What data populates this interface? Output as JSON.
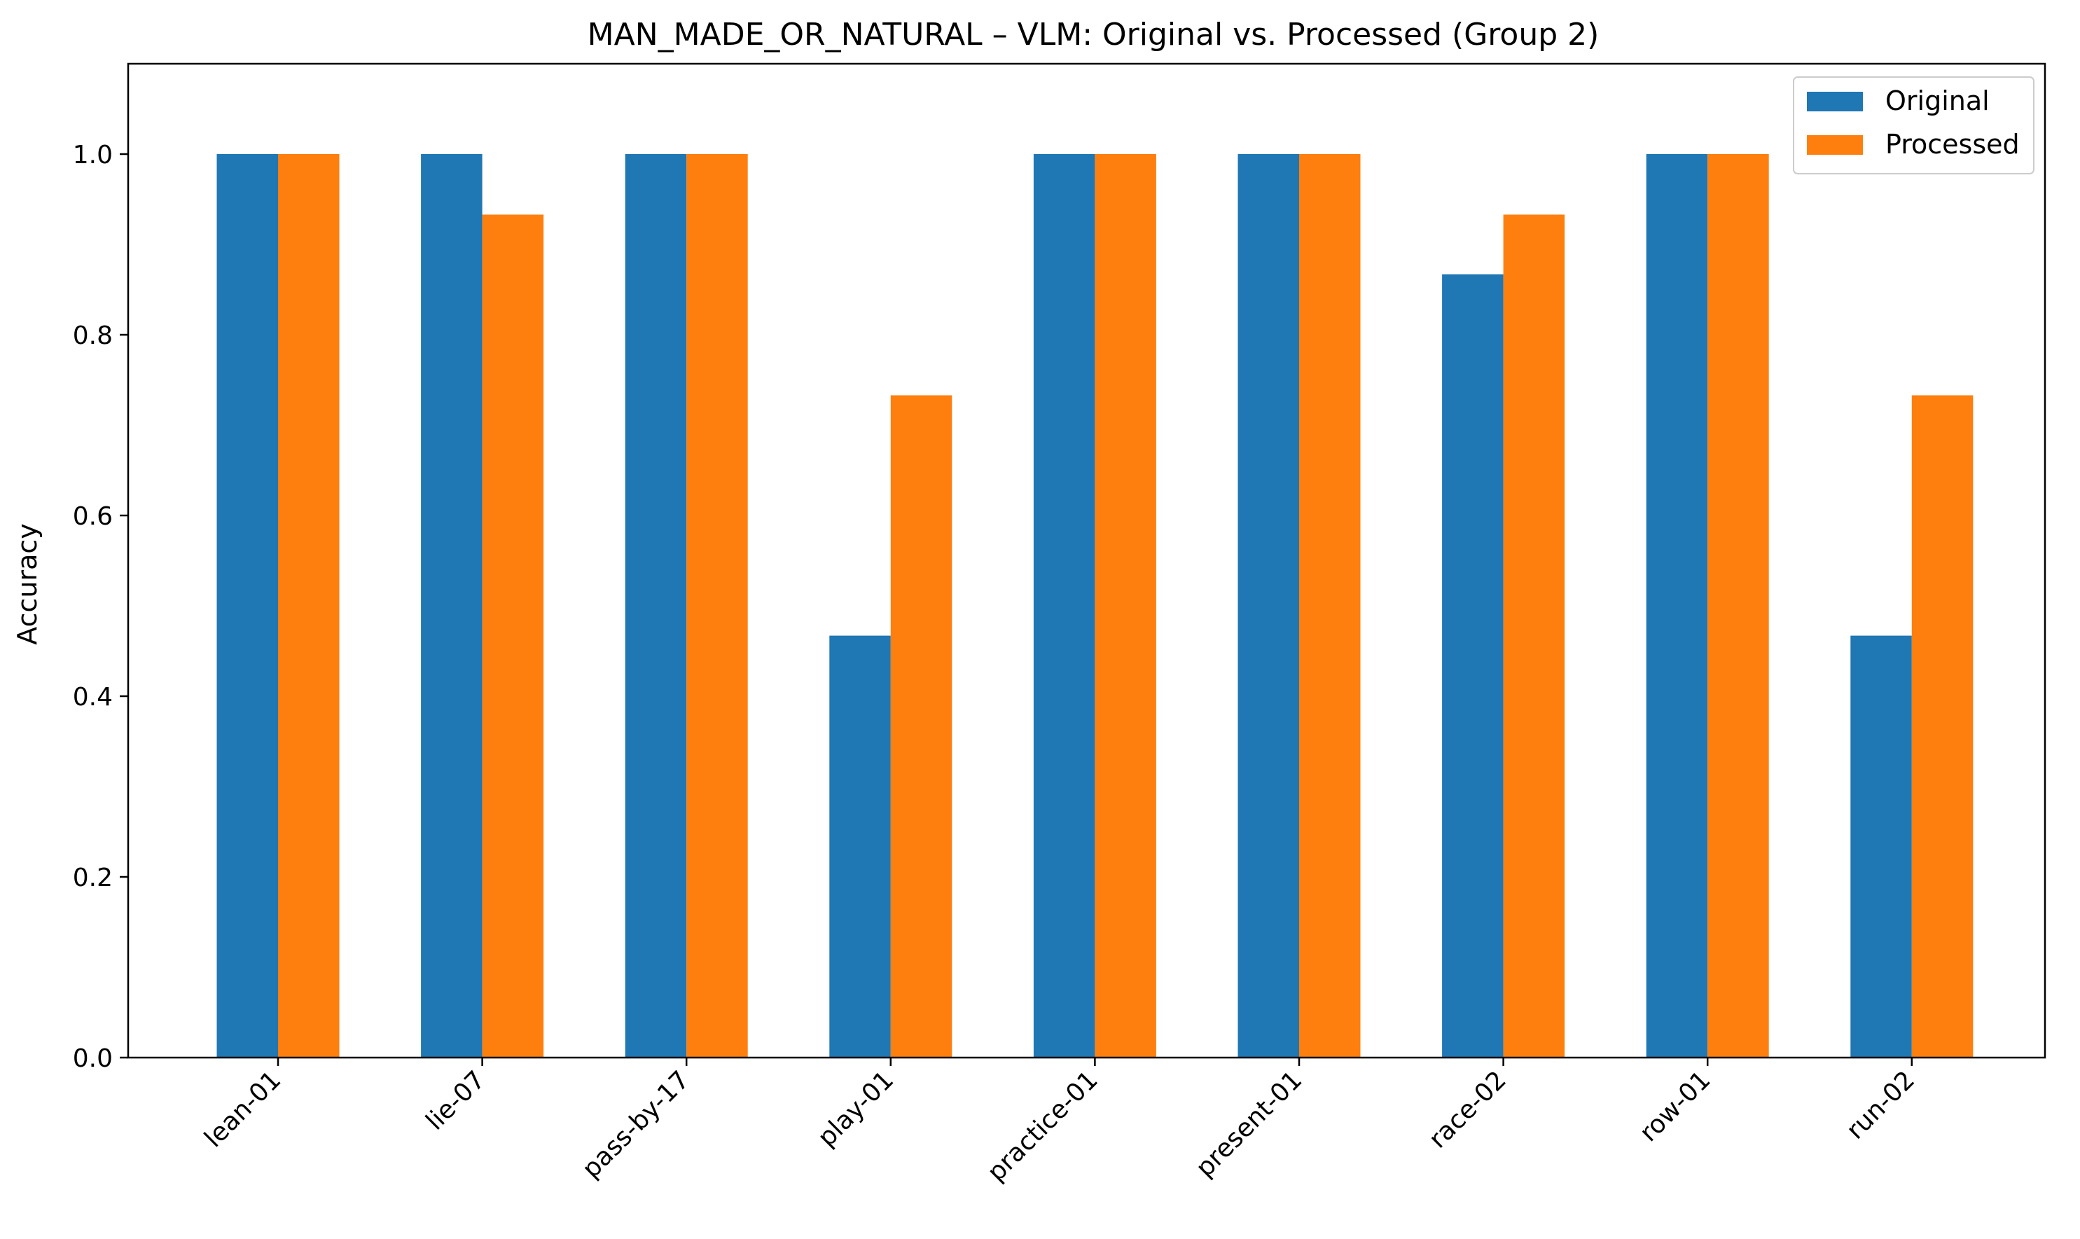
{
  "chart_data": {
    "type": "bar",
    "title": "MAN_MADE_OR_NATURAL – VLM: Original vs. Processed (Group 2)",
    "xlabel": "",
    "ylabel": "Accuracy",
    "ylim": [
      0,
      1.1
    ],
    "yticks": [
      0.0,
      0.2,
      0.4,
      0.6,
      0.8,
      1.0
    ],
    "ytick_labels": [
      "0.0",
      "0.2",
      "0.4",
      "0.6",
      "0.8",
      "1.0"
    ],
    "grid": false,
    "legend_position": "top-right",
    "categories": [
      "lean-01",
      "lie-07",
      "pass-by-17",
      "play-01",
      "practice-01",
      "present-01",
      "race-02",
      "row-01",
      "run-02"
    ],
    "series": [
      {
        "name": "Original",
        "color": "#1f77b4",
        "values": [
          1.0,
          1.0,
          1.0,
          0.467,
          1.0,
          1.0,
          0.867,
          1.0,
          0.467
        ]
      },
      {
        "name": "Processed",
        "color": "#ff7f0e",
        "values": [
          1.0,
          0.933,
          1.0,
          0.733,
          1.0,
          1.0,
          0.933,
          1.0,
          0.733
        ]
      }
    ]
  }
}
